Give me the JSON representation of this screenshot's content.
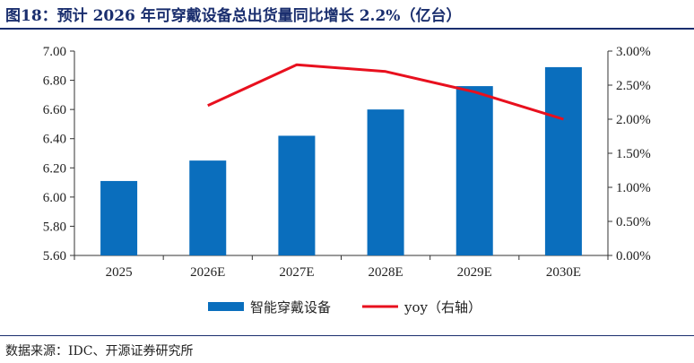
{
  "header": {
    "title": "图18：预计 2026 年可穿戴设备总出货量同比增长 2.2%（亿台）"
  },
  "footer": {
    "source": "数据来源：IDC、开源证券研究所"
  },
  "colors": {
    "bar": "#0a6ebd",
    "line": "#e8101e",
    "title": "#1a2e6e"
  },
  "chart_data": {
    "type": "bar",
    "categories": [
      "2025",
      "2026E",
      "2027E",
      "2028E",
      "2029E",
      "2030E"
    ],
    "series": [
      {
        "name": "智能穿戴设备",
        "type": "bar",
        "axis": "left",
        "values": [
          6.11,
          6.25,
          6.42,
          6.6,
          6.76,
          6.89
        ]
      },
      {
        "name": "yoy（右轴）",
        "type": "line",
        "axis": "right",
        "values": [
          null,
          2.2,
          2.8,
          2.7,
          2.4,
          2.0
        ]
      }
    ],
    "y_left": {
      "ylim": [
        5.6,
        7.0
      ],
      "ticks": [
        "5.60",
        "5.80",
        "6.00",
        "6.20",
        "6.40",
        "6.60",
        "6.80",
        "7.00"
      ]
    },
    "y_right": {
      "ylim": [
        0,
        3.0
      ],
      "ticks": [
        "0.00%",
        "0.50%",
        "1.00%",
        "1.50%",
        "2.00%",
        "2.50%",
        "3.00%"
      ]
    },
    "legend": "bottom-center",
    "grid": false
  }
}
